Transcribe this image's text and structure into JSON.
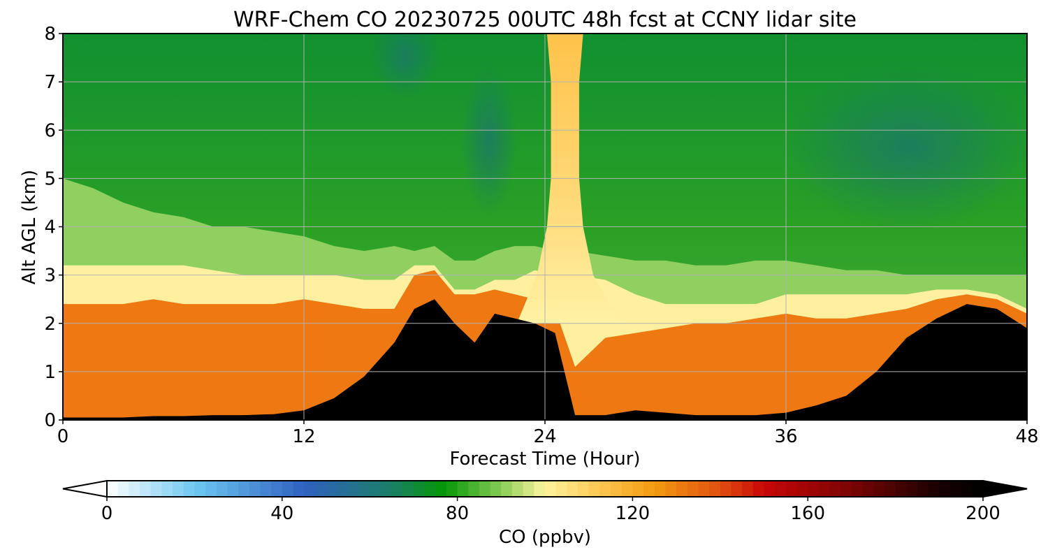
{
  "chart_data": {
    "type": "heatmap",
    "title": "WRF-Chem CO  20230725 00UTC 48h fcst at CCNY lidar site",
    "xlabel": "Forecast Time (Hour)",
    "ylabel": "Alt AGL (km)",
    "xlim": [
      0,
      48
    ],
    "ylim": [
      0,
      8
    ],
    "xticks": [
      "0",
      "12",
      "24",
      "36",
      "48"
    ],
    "yticks": [
      "0",
      "1",
      "2",
      "3",
      "4",
      "5",
      "6",
      "7",
      "8"
    ],
    "grid": true,
    "colorbar": {
      "label": "CO  (ppbv)",
      "range": [
        0,
        200
      ],
      "ticks": [
        "0",
        "40",
        "80",
        "120",
        "160",
        "200"
      ],
      "extend": "both",
      "stops": [
        {
          "v": 0,
          "c": "#ffffff"
        },
        {
          "v": 20,
          "c": "#6ec8f2"
        },
        {
          "v": 45,
          "c": "#3060c0"
        },
        {
          "v": 65,
          "c": "#1a8066"
        },
        {
          "v": 77,
          "c": "#059705"
        },
        {
          "v": 90,
          "c": "#88cc55"
        },
        {
          "v": 100,
          "c": "#fff5a0"
        },
        {
          "v": 110,
          "c": "#ffcf60"
        },
        {
          "v": 125,
          "c": "#f39a10"
        },
        {
          "v": 140,
          "c": "#e05010"
        },
        {
          "v": 150,
          "c": "#c80606"
        },
        {
          "v": 170,
          "c": "#7a0404"
        },
        {
          "v": 190,
          "c": "#180101"
        },
        {
          "v": 200,
          "c": "#000000"
        }
      ]
    },
    "x": [
      0,
      1.5,
      3,
      4.5,
      6,
      7.5,
      9,
      10.5,
      12,
      13.5,
      15,
      16.5,
      17.5,
      18.5,
      19.5,
      20.5,
      21.5,
      22.5,
      23.5,
      24.5,
      25.5,
      27,
      28.5,
      30,
      31.5,
      33,
      34.5,
      36,
      37.5,
      39,
      40.5,
      42,
      43.5,
      45,
      46.5,
      48
    ],
    "black_top_km": [
      0.05,
      0.05,
      0.05,
      0.08,
      0.08,
      0.1,
      0.1,
      0.12,
      0.2,
      0.45,
      0.9,
      1.6,
      2.3,
      2.5,
      2.0,
      1.6,
      2.2,
      2.1,
      2.0,
      1.8,
      0.1,
      0.1,
      0.2,
      0.15,
      0.1,
      0.1,
      0.1,
      0.15,
      0.3,
      0.5,
      1.0,
      1.7,
      2.1,
      2.4,
      2.3,
      1.9
    ],
    "red_top_km": [
      2.4,
      2.4,
      2.4,
      2.5,
      2.4,
      2.4,
      2.4,
      2.4,
      2.5,
      2.4,
      2.3,
      2.3,
      3.0,
      3.1,
      2.6,
      2.6,
      2.7,
      2.6,
      2.5,
      2.3,
      1.1,
      1.7,
      1.8,
      1.9,
      2.0,
      2.0,
      2.1,
      2.2,
      2.1,
      2.1,
      2.2,
      2.3,
      2.5,
      2.6,
      2.5,
      2.2
    ],
    "inversion_top_km": [
      3.2,
      3.2,
      3.2,
      3.2,
      3.2,
      3.1,
      3.0,
      3.0,
      3.0,
      3.0,
      2.9,
      2.9,
      3.2,
      3.2,
      2.7,
      2.7,
      2.9,
      2.9,
      3.1,
      3.0,
      3.0,
      2.9,
      2.6,
      2.4,
      2.4,
      2.4,
      2.4,
      2.6,
      2.6,
      2.6,
      2.6,
      2.6,
      2.7,
      2.7,
      2.6,
      2.3
    ],
    "transition_top_km": [
      5.0,
      4.8,
      4.5,
      4.3,
      4.2,
      4.0,
      4.0,
      3.9,
      3.8,
      3.6,
      3.5,
      3.6,
      3.5,
      3.6,
      3.3,
      3.3,
      3.5,
      3.6,
      3.6,
      3.5,
      3.5,
      3.4,
      3.3,
      3.3,
      3.2,
      3.2,
      3.3,
      3.3,
      3.2,
      3.1,
      3.1,
      3.0,
      3.0,
      3.0,
      3.0,
      3.0
    ],
    "plume": {
      "center_hour": 25.0,
      "half_width_hours": [
        1.4,
        0.9,
        0.7,
        0.7,
        0.7,
        0.8,
        0.9,
        1.0,
        1.2
      ],
      "levels_km": [
        3,
        4,
        5,
        6,
        7,
        7.5,
        8,
        8,
        8
      ]
    }
  }
}
